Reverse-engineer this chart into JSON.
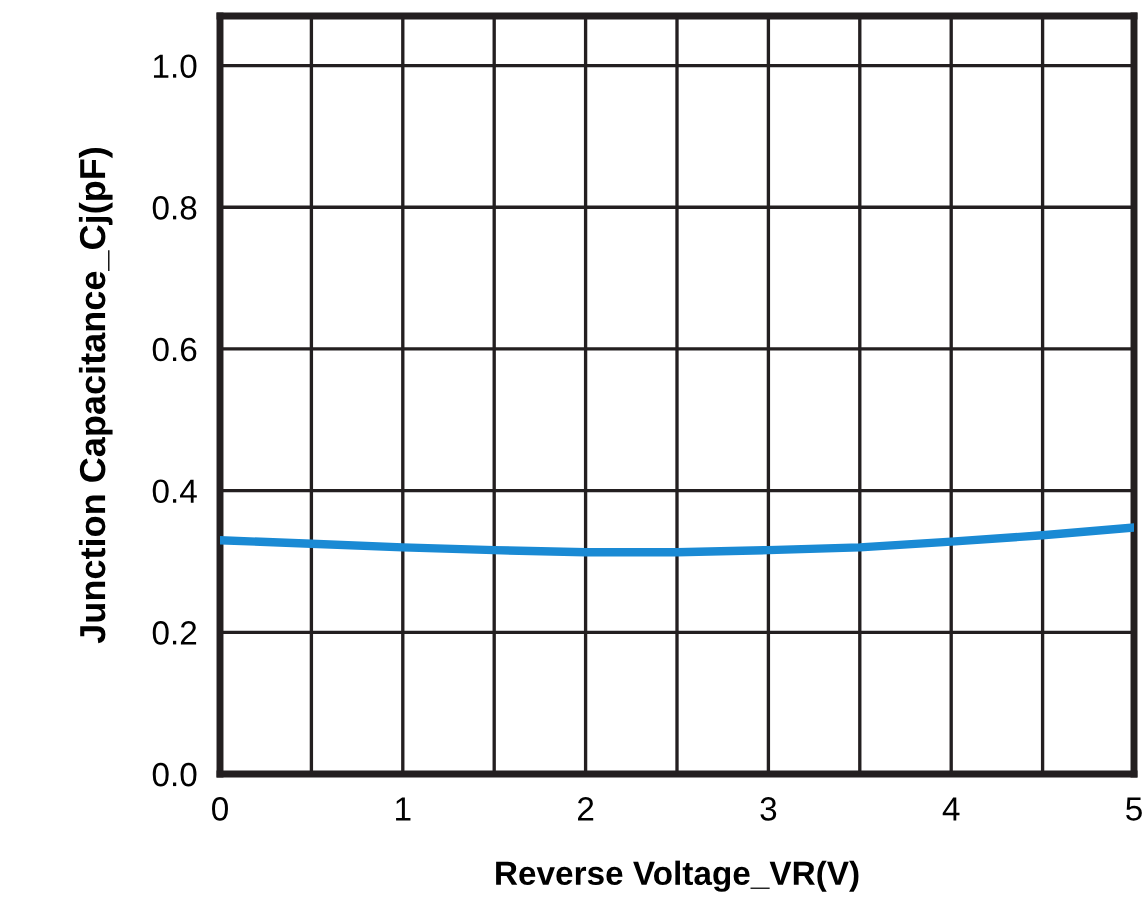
{
  "chart_data": {
    "type": "line",
    "xlabel": "Reverse Voltage_VR(V)",
    "ylabel": "Junction Capacitance_Cj(pF)",
    "x": [
      0,
      0.5,
      1,
      1.5,
      2,
      2.5,
      3,
      3.5,
      4,
      4.5,
      5
    ],
    "series": [
      {
        "color": "#1a8ad4",
        "values": [
          0.33,
          0.325,
          0.32,
          0.316,
          0.313,
          0.313,
          0.316,
          0.32,
          0.328,
          0.337,
          0.348
        ]
      }
    ],
    "xlim": [
      0,
      5
    ],
    "ylim": [
      0,
      1.07
    ],
    "xticks": [
      0,
      {
        "value": 0.5,
        "label": null
      },
      1,
      {
        "value": 1.5,
        "label": null
      },
      2,
      {
        "value": 2.5,
        "label": null
      },
      3,
      {
        "value": 3.5,
        "label": null
      },
      4,
      {
        "value": 4.5,
        "label": null
      },
      5
    ],
    "yticks": [
      {
        "value": 0,
        "label": "0.0"
      },
      0.2,
      0.4,
      0.6,
      0.8,
      {
        "value": 1,
        "label": "1.0"
      }
    ],
    "grid": true,
    "legend": false,
    "marker": "none",
    "line_style": "solid"
  }
}
